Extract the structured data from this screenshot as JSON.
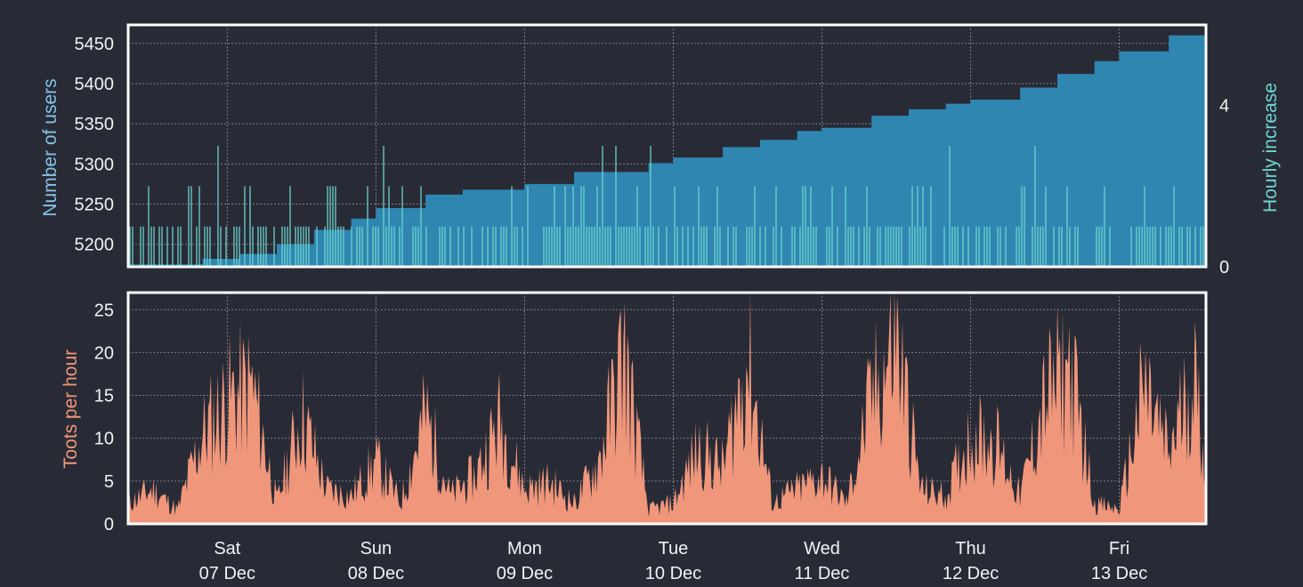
{
  "colors": {
    "background": "#282b36",
    "users": "#2e86b1",
    "hourly_increase": "#6fd6cf",
    "toots": "#f0967a",
    "text": "#f2f2f2",
    "users_axis_label": "#86c3e6",
    "hourly_axis_label": "#6fd6cf",
    "toots_axis_label": "#f0967a",
    "frame": "#ffffff"
  },
  "x_axis": {
    "tick_labels": [
      {
        "day": "Sat",
        "date": "07 Dec"
      },
      {
        "day": "Sun",
        "date": "08 Dec"
      },
      {
        "day": "Mon",
        "date": "09 Dec"
      },
      {
        "day": "Tue",
        "date": "10 Dec"
      },
      {
        "day": "Wed",
        "date": "11 Dec"
      },
      {
        "day": "Thu",
        "date": "12 Dec"
      },
      {
        "day": "Fri",
        "date": "13 Dec"
      }
    ]
  },
  "chart_data": [
    {
      "type": "area",
      "ylabel": "Number of users",
      "y2label": "Hourly increase",
      "ylim": [
        5172,
        5473
      ],
      "y2lim": [
        0,
        6
      ],
      "yticks": [
        5200,
        5250,
        5300,
        5350,
        5400,
        5450
      ],
      "y2ticks": [
        0,
        4
      ],
      "x_range": [
        "2019-12-06T08:00",
        "2019-12-13T14:00"
      ],
      "grid": true,
      "series": [
        {
          "name": "Number of users",
          "type": "area",
          "x": [
            "2019-12-06T08:00",
            "2019-12-06T20:00",
            "2019-12-07T02:00",
            "2019-12-07T08:00",
            "2019-12-07T14:00",
            "2019-12-07T20:00",
            "2019-12-08T00:00",
            "2019-12-08T08:00",
            "2019-12-08T14:00",
            "2019-12-09T00:00",
            "2019-12-09T08:00",
            "2019-12-09T20:00",
            "2019-12-10T00:00",
            "2019-12-10T08:00",
            "2019-12-10T14:00",
            "2019-12-10T20:00",
            "2019-12-11T00:00",
            "2019-12-11T08:00",
            "2019-12-11T14:00",
            "2019-12-11T20:00",
            "2019-12-12T00:00",
            "2019-12-12T08:00",
            "2019-12-12T14:00",
            "2019-12-12T20:00",
            "2019-12-13T00:00",
            "2019-12-13T08:00",
            "2019-12-13T14:00"
          ],
          "y": [
            5175,
            5182,
            5188,
            5200,
            5218,
            5232,
            5245,
            5262,
            5268,
            5275,
            5290,
            5301,
            5308,
            5321,
            5330,
            5341,
            5345,
            5360,
            5368,
            5375,
            5380,
            5395,
            5412,
            5428,
            5440,
            5460,
            5470
          ]
        },
        {
          "name": "Hourly increase",
          "type": "bar",
          "axis": "y2",
          "summary": "Thin bars of 0–3 new users per interval across the whole week, mostly 1, with occasional 2s and 3s and a few isolated peaks of 3 on 07 and 08 Dec"
        }
      ]
    },
    {
      "type": "area",
      "ylabel": "Toots per hour",
      "ylim": [
        0,
        27
      ],
      "yticks": [
        0,
        5,
        10,
        15,
        20,
        25
      ],
      "x_range": [
        "2019-12-06T08:00",
        "2019-12-13T14:00"
      ],
      "grid": true,
      "series": [
        {
          "name": "Toots per hour",
          "x": [
            "2019-12-06T08:00",
            "2019-12-06T12:00",
            "2019-12-06T16:00",
            "2019-12-06T20:00",
            "2019-12-07T00:00",
            "2019-12-07T04:00",
            "2019-12-07T08:00",
            "2019-12-07T12:00",
            "2019-12-07T16:00",
            "2019-12-07T20:00",
            "2019-12-08T00:00",
            "2019-12-08T04:00",
            "2019-12-08T08:00",
            "2019-12-08T12:00",
            "2019-12-08T16:00",
            "2019-12-08T20:00",
            "2019-12-09T00:00",
            "2019-12-09T04:00",
            "2019-12-09T08:00",
            "2019-12-09T12:00",
            "2019-12-09T16:00",
            "2019-12-09T20:00",
            "2019-12-10T00:00",
            "2019-12-10T04:00",
            "2019-12-10T08:00",
            "2019-12-10T12:00",
            "2019-12-10T16:00",
            "2019-12-10T20:00",
            "2019-12-11T00:00",
            "2019-12-11T04:00",
            "2019-12-11T08:00",
            "2019-12-11T12:00",
            "2019-12-11T16:00",
            "2019-12-11T20:00",
            "2019-12-12T00:00",
            "2019-12-12T04:00",
            "2019-12-12T08:00",
            "2019-12-12T12:00",
            "2019-12-12T16:00",
            "2019-12-12T20:00",
            "2019-12-13T00:00",
            "2019-12-13T04:00",
            "2019-12-13T08:00",
            "2019-12-13T12:00",
            "2019-12-13T14:00"
          ],
          "y": [
            3,
            5,
            2,
            13,
            18,
            20,
            3,
            16,
            5,
            4,
            9,
            3,
            16,
            4,
            7,
            15,
            5,
            6,
            3,
            9,
            25,
            2,
            3,
            11,
            8,
            24,
            3,
            5,
            7,
            3,
            18,
            27,
            5,
            4,
            13,
            12,
            4,
            18,
            23,
            3,
            2,
            20,
            10,
            22,
            8
          ]
        }
      ]
    }
  ]
}
